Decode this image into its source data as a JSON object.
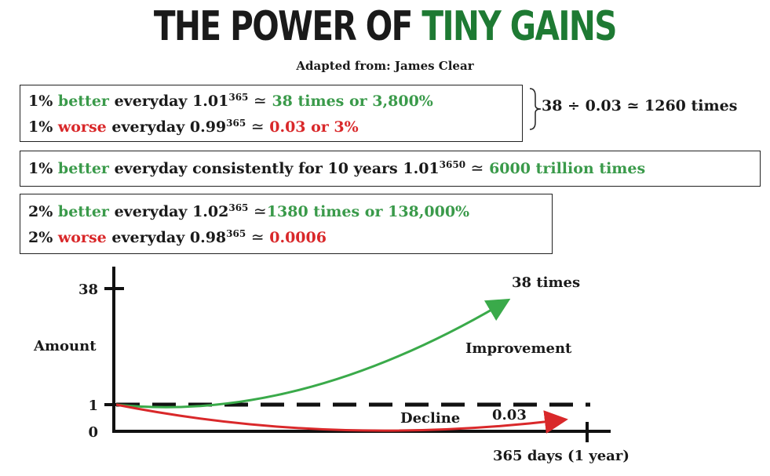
{
  "title": {
    "part1": "THE POWER OF",
    "part2": "TINY GAINS"
  },
  "subtitle": "Adapted from: James Clear",
  "box1": {
    "line1": {
      "pct": "1%",
      "word": "better",
      "rest": "everyday 1.01",
      "exp": "365",
      "approx": "≃",
      "result": "38 times or 3,800%"
    },
    "line2": {
      "pct": "1%",
      "word": "worse",
      "rest": "everyday 0.99",
      "exp": "365",
      "approx": "≃",
      "result": "0.03 or 3%"
    }
  },
  "brace_note": "38 ÷ 0.03 ≃ 1260 times",
  "box2": {
    "pct": "1%",
    "word": "better",
    "rest": "everyday consistently for 10 years 1.01",
    "exp": "3650",
    "approx": "≃",
    "result": "6000 trillion times"
  },
  "box3": {
    "line1": {
      "pct": "2%",
      "word": "better",
      "rest": "everyday 1.02",
      "exp": "365",
      "approx": "≃",
      "result": "1380 times or 138,000%"
    },
    "line2": {
      "pct": "2%",
      "word": "worse",
      "rest": "everyday 0.98",
      "exp": "365",
      "approx": "≃",
      "result": "0.0006"
    }
  },
  "chart": {
    "y_tick_top": "38",
    "y_tick_one": "1",
    "y_tick_zero": "0",
    "y_label": "Amount",
    "x_label": "365 days (1 year)",
    "improvement_label": "Improvement",
    "improvement_end_label": "38 times",
    "decline_label": "Decline",
    "decline_end_label": "0.03",
    "colors": {
      "improvement": "#3aaa4a",
      "decline": "#d9282a",
      "axis": "#111111"
    }
  }
}
